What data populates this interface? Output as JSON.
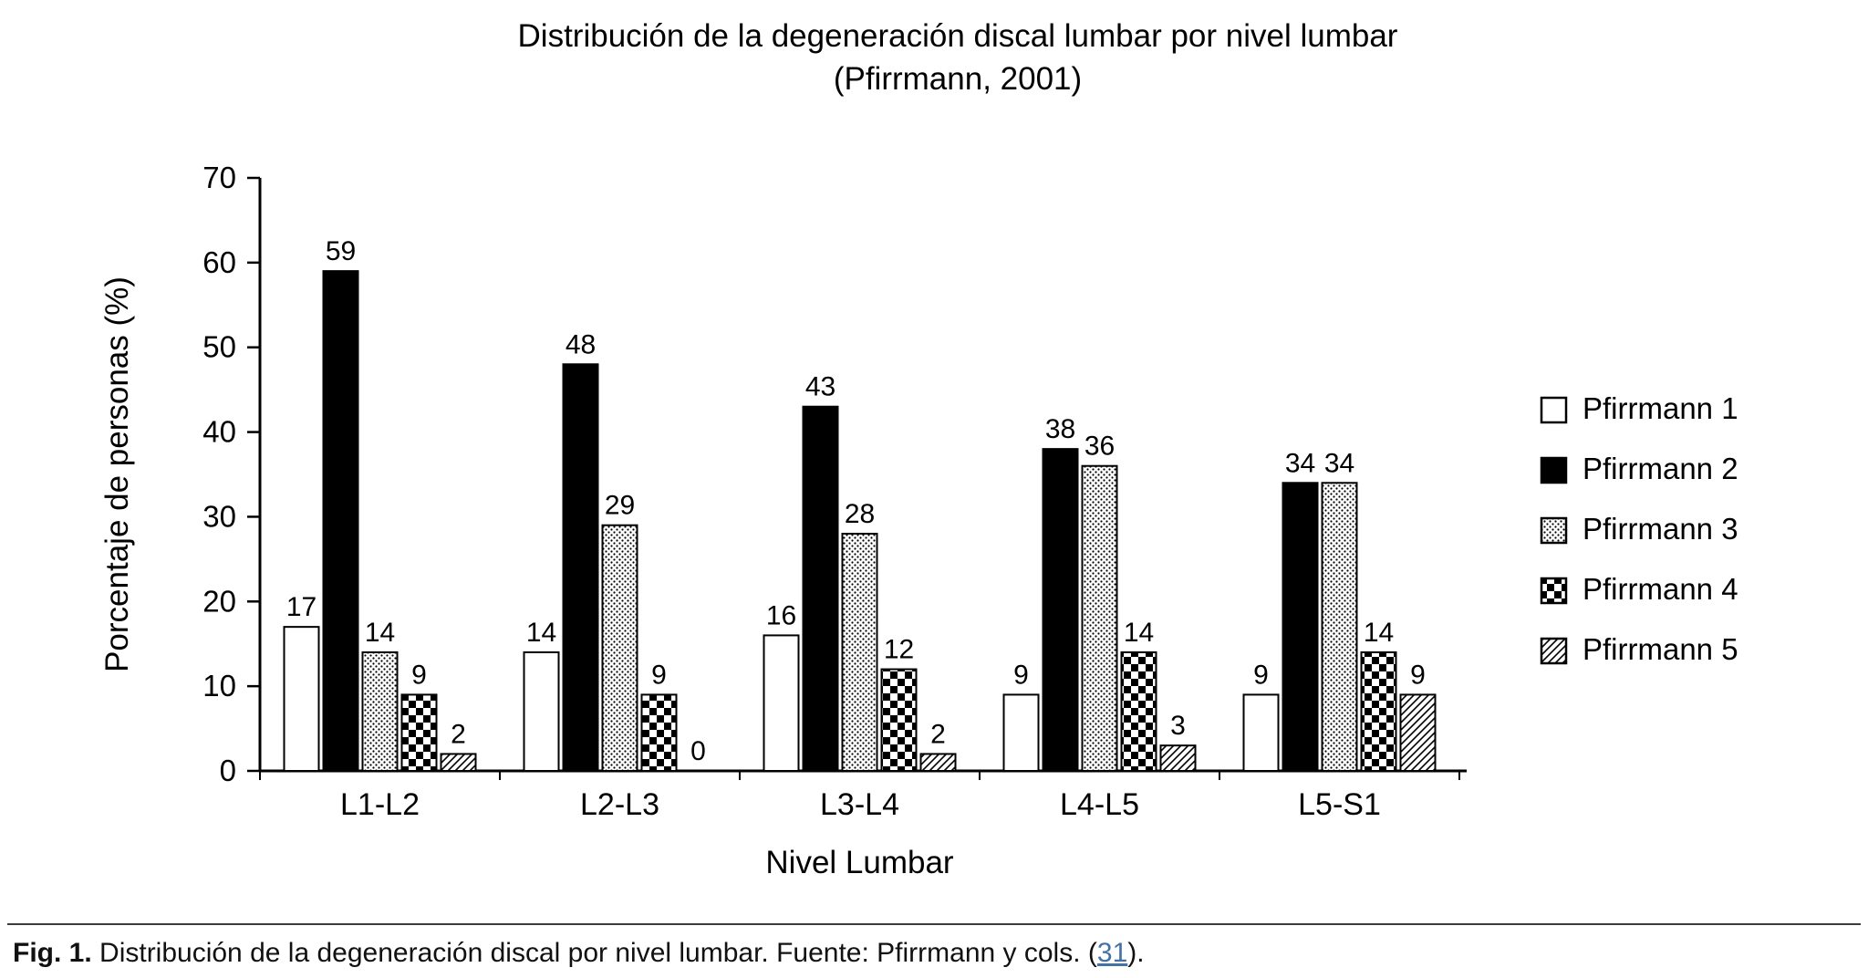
{
  "title": {
    "line1": "Distribución de la degeneración discal lumbar por nivel lumbar",
    "line2": "(Pfirrmann, 2001)"
  },
  "chart_data": {
    "type": "bar",
    "title": "Distribución de la degeneración discal lumbar por nivel lumbar (Pfirrmann, 2001)",
    "categories": [
      "L1-L2",
      "L2-L3",
      "L3-L4",
      "L4-L5",
      "L5-S1"
    ],
    "series": [
      {
        "name": "Pfirrmann 1",
        "pattern": "open",
        "values": [
          17,
          14,
          16,
          9,
          9
        ]
      },
      {
        "name": "Pfirrmann 2",
        "pattern": "solid",
        "values": [
          59,
          48,
          43,
          38,
          34
        ]
      },
      {
        "name": "Pfirrmann 3",
        "pattern": "dots",
        "values": [
          14,
          29,
          28,
          36,
          34
        ]
      },
      {
        "name": "Pfirrmann 4",
        "pattern": "checker",
        "values": [
          9,
          9,
          12,
          14,
          14
        ]
      },
      {
        "name": "Pfirrmann 5",
        "pattern": "hatch",
        "values": [
          2,
          0,
          2,
          3,
          9
        ]
      }
    ],
    "xlabel": "Nivel Lumbar",
    "ylabel": "Porcentaje de personas (%)",
    "ylim": [
      0,
      70
    ],
    "ytick_step": 10,
    "grid": false,
    "legend_position": "right",
    "bar_outline_color": "#000000",
    "bar_fill_color": "#000000"
  },
  "caption": {
    "fig_label": "Fig. 1.",
    "text": " Distribución de la degeneración discal por nivel lumbar. Fuente: Pfirrmann y cols. (",
    "link": "31",
    "suffix": ").",
    "link_color": "#4472a4"
  }
}
